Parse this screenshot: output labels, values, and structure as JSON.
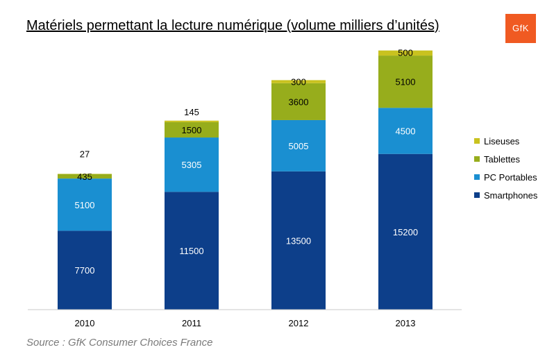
{
  "title": "Matériels permettant la lecture numérique (volume milliers d’unités)",
  "logo_text": "GfK",
  "source": "Source : GfK Consumer Choices France",
  "colors": {
    "Liseuses": "#c9c21f",
    "Tablettes": "#97ad1c",
    "PC Portables": "#1a8fd1",
    "Smartphones": "#0d3f8a"
  },
  "legend": [
    "Liseuses",
    "Tablettes",
    "PC Portables",
    "Smartphones"
  ],
  "chart_data": {
    "type": "bar",
    "stacked": true,
    "title": "Matériels permettant la lecture numérique (volume milliers d’unités)",
    "categories": [
      "2010",
      "2011",
      "2012",
      "2013"
    ],
    "series": [
      {
        "name": "Smartphones",
        "values": [
          7700,
          11500,
          13500,
          15200
        ]
      },
      {
        "name": "PC Portables",
        "values": [
          5100,
          5305,
          5005,
          4500
        ]
      },
      {
        "name": "Tablettes",
        "values": [
          435,
          1500,
          3600,
          5100
        ]
      },
      {
        "name": "Liseuses",
        "values": [
          27,
          145,
          300,
          500
        ]
      }
    ],
    "xlabel": "",
    "ylabel": "",
    "legend_position": "right",
    "grid": false
  }
}
